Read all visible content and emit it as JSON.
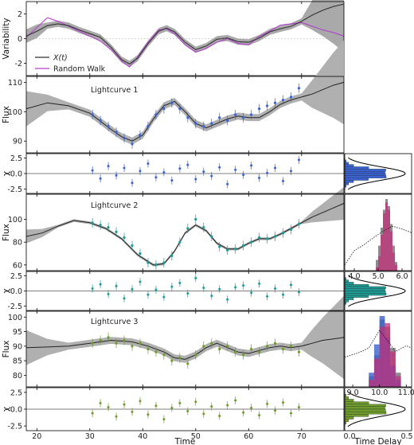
{
  "chart_data": [
    {
      "type": "line",
      "panel": "variability",
      "ylabel": "Variability",
      "xlabel": "Time",
      "xlim": [
        18,
        78
      ],
      "ylim": [
        -3,
        3
      ],
      "yticks": [
        "-2",
        "0",
        "2"
      ],
      "legend": {
        "position": "bottom-left",
        "entries": [
          "X(t)",
          "Random Walk"
        ]
      },
      "colors": {
        "model": "#333333",
        "band": "#a9a9a9",
        "random_walk": "#b53fd0"
      },
      "series": [
        {
          "name": "X(t)",
          "x": [
            18,
            20,
            22,
            24,
            26,
            28,
            30,
            32,
            34,
            36,
            37.5,
            39,
            41,
            43,
            44.5,
            46,
            48,
            50,
            52,
            54,
            56,
            58,
            60,
            62,
            64,
            66,
            68,
            70,
            72,
            74,
            76,
            78
          ],
          "values": [
            0.2,
            0.6,
            1.05,
            1.2,
            1.05,
            0.7,
            0.4,
            0.1,
            -0.7,
            -1.7,
            -2.05,
            -1.6,
            -0.4,
            0.6,
            0.85,
            0.55,
            -0.3,
            -0.9,
            -0.6,
            -0.05,
            0.05,
            -0.25,
            -0.3,
            0.05,
            0.55,
            0.8,
            1.0,
            1.4,
            1.9,
            2.3,
            2.6,
            2.8
          ]
        },
        {
          "name": "Random Walk",
          "x": [
            18,
            20,
            22,
            24,
            26,
            28,
            30,
            32,
            34,
            36,
            37.5,
            39,
            41,
            43,
            44.5,
            46,
            48,
            50,
            52,
            54,
            56,
            58,
            60,
            62,
            64,
            66,
            68,
            70,
            72,
            74,
            76,
            78
          ],
          "values": [
            0.1,
            0.9,
            1.7,
            1.4,
            1.0,
            0.6,
            0.2,
            -0.2,
            -0.9,
            -1.8,
            -2.3,
            -1.5,
            -0.3,
            0.7,
            0.8,
            0.4,
            -0.5,
            -1.1,
            -0.8,
            -0.3,
            0.0,
            -0.4,
            -0.5,
            0.2,
            0.6,
            1.1,
            1.2,
            1.3,
            1.0,
            0.7,
            0.5,
            0.2
          ]
        }
      ]
    },
    {
      "type": "scatter",
      "panel": "lightcurve1",
      "title": "Lightcurve 1",
      "ylabel": "Flux",
      "ylim": [
        86,
        112
      ],
      "yticks": [
        "90",
        "100",
        "110"
      ],
      "color": "#3a62d0",
      "model_x": [
        18,
        22,
        26,
        30,
        34,
        36,
        38,
        40,
        42,
        44,
        46,
        48,
        50,
        52,
        54,
        56,
        58,
        60,
        62,
        64,
        66,
        68,
        70,
        72,
        74,
        76,
        78
      ],
      "model_y": [
        101,
        103,
        102,
        99.5,
        94,
        91.5,
        90,
        92,
        97.5,
        102,
        103.5,
        100,
        96,
        94.5,
        96,
        97.5,
        98.5,
        98,
        98,
        100,
        102.5,
        104,
        105,
        106,
        107.5,
        109,
        110
      ],
      "points_x": [
        30.5,
        32,
        33.5,
        35,
        36.5,
        38,
        39.5,
        41,
        42.5,
        44,
        45.5,
        47,
        48.5,
        50,
        51.5,
        53,
        54.5,
        56,
        57.5,
        59,
        60.5,
        62,
        63.5,
        65,
        66.5,
        68,
        69.5
      ],
      "points_y": [
        99,
        97,
        95,
        93,
        91,
        89,
        92,
        95,
        99,
        101,
        103,
        101,
        98,
        96,
        95,
        96,
        98,
        97,
        99,
        98,
        99,
        101,
        102,
        103,
        104,
        105,
        108
      ]
    },
    {
      "type": "scatter",
      "panel": "residuals1",
      "ylabel": "χ",
      "ylim": [
        -3.2,
        3.2
      ],
      "yticks": [
        "-2.5",
        "0.0",
        "2.5"
      ],
      "color": "#3a62d0",
      "x": [
        30.5,
        32,
        33.5,
        35,
        36.5,
        38,
        39.5,
        41,
        42.5,
        44,
        45.5,
        47,
        48.5,
        50,
        51.5,
        53,
        54.5,
        56,
        57.5,
        59,
        60.5,
        62,
        63.5,
        65,
        66.5,
        68,
        69.5
      ],
      "values": [
        0.5,
        -0.8,
        1.2,
        -0.3,
        0.9,
        -1.5,
        0.4,
        1.6,
        -0.6,
        0.2,
        -1.1,
        0.8,
        1.4,
        -0.9,
        0.3,
        -0.4,
        1.0,
        -1.7,
        0.6,
        -0.2,
        1.3,
        -0.7,
        0.1,
        0.9,
        -1.2,
        0.4,
        2.2
      ]
    },
    {
      "type": "scatter",
      "panel": "lightcurve2",
      "title": "Lightcurve 2",
      "ylabel": "Flux",
      "ylim": [
        55,
        122
      ],
      "yticks": [
        "60",
        "80",
        "100"
      ],
      "color": "#1f9a94",
      "model_x": [
        18,
        21,
        24,
        27,
        30,
        33,
        36,
        39,
        42,
        44,
        46,
        48,
        50,
        52,
        54,
        56,
        58,
        60,
        62,
        64,
        66,
        68,
        70,
        72,
        74,
        76,
        78
      ],
      "model_y": [
        85,
        88,
        94,
        99,
        97,
        92,
        83,
        69,
        60,
        61,
        72,
        88,
        95,
        90,
        79,
        74,
        74,
        79,
        83,
        83,
        87,
        92,
        97,
        102,
        106,
        110,
        114
      ],
      "points_x": [
        30.5,
        32,
        33.5,
        35,
        36.5,
        38,
        39.5,
        41,
        42.5,
        44,
        45.5,
        47,
        48.5,
        50,
        51.5,
        53,
        54.5,
        56,
        57.5,
        59,
        60.5,
        62,
        63.5,
        65,
        66.5,
        68,
        69.5
      ],
      "points_y": [
        97,
        95,
        93,
        89,
        84,
        77,
        70,
        62,
        60,
        62,
        68,
        80,
        92,
        100,
        93,
        85,
        76,
        73,
        74,
        77,
        80,
        84,
        83,
        85,
        88,
        91,
        96
      ]
    },
    {
      "type": "scatter",
      "panel": "residuals2",
      "ylabel": "χ",
      "ylim": [
        -3.2,
        3.2
      ],
      "yticks": [
        "-2.5",
        "0.0",
        "2.5"
      ],
      "color": "#1f9a94",
      "x": [
        30.5,
        32,
        33.5,
        35,
        36.5,
        38,
        39.5,
        41,
        42.5,
        44,
        45.5,
        47,
        48.5,
        50,
        51.5,
        53,
        54.5,
        56,
        57.5,
        59,
        60.5,
        62,
        63.5,
        65,
        66.5,
        68,
        69.5
      ],
      "values": [
        0.4,
        1.1,
        -0.5,
        0.8,
        -1.2,
        0.3,
        1.5,
        -0.6,
        0.2,
        -1.0,
        0.7,
        1.3,
        -0.4,
        2.1,
        0.5,
        -0.8,
        0.3,
        -1.4,
        0.6,
        0.9,
        -0.3,
        1.2,
        -0.9,
        0.4,
        -0.6,
        1.0,
        -0.2
      ]
    },
    {
      "type": "scatter",
      "panel": "lightcurve3",
      "title": "Lightcurve 3",
      "ylabel": "Flux",
      "ylim": [
        76,
        102
      ],
      "yticks": [
        "80",
        "85",
        "90",
        "95",
        "100"
      ],
      "color": "#6e9a2e",
      "model_x": [
        18,
        22,
        26,
        30,
        34,
        38,
        41,
        44,
        46,
        48,
        50,
        52,
        54,
        56,
        58,
        60,
        62,
        64,
        66,
        68,
        70,
        72,
        74,
        76,
        78
      ],
      "model_y": [
        89.5,
        89.7,
        90,
        91,
        92,
        91.5,
        90,
        88,
        86,
        85.5,
        87,
        89.5,
        91,
        89.5,
        88,
        87.5,
        88.5,
        89.5,
        90,
        89.5,
        90,
        91,
        92,
        92.5,
        93
      ],
      "points_x": [
        30.5,
        32,
        33.5,
        35,
        36.5,
        38,
        39.5,
        41,
        42.5,
        44,
        45.5,
        47,
        48.5,
        50,
        51.5,
        53,
        54.5,
        56,
        57.5,
        59,
        60.5,
        62,
        63.5,
        65,
        66.5,
        68,
        69.5
      ],
      "points_y": [
        91,
        92,
        93,
        91,
        92,
        90,
        91,
        89,
        88,
        87,
        85,
        86,
        84,
        87,
        90,
        91,
        89,
        90,
        88,
        87,
        89,
        88,
        90,
        91,
        89,
        90,
        88
      ]
    },
    {
      "type": "scatter",
      "panel": "residuals3",
      "ylabel": "χ",
      "ylim": [
        -3.2,
        3.2
      ],
      "yticks": [
        "-2.5",
        "0.0",
        "2.5"
      ],
      "color": "#6e9a2e",
      "x": [
        30.5,
        32,
        33.5,
        35,
        36.5,
        38,
        39.5,
        41,
        42.5,
        44,
        45.5,
        47,
        48.5,
        50,
        51.5,
        53,
        54.5,
        56,
        57.5,
        59,
        60.5,
        62,
        63.5,
        65,
        66.5,
        68,
        69.5
      ],
      "values": [
        -0.6,
        0.9,
        0.3,
        -1.1,
        0.7,
        -0.4,
        1.2,
        -0.8,
        0.5,
        -1.5,
        0.2,
        0.9,
        -0.3,
        1.1,
        -0.7,
        0.4,
        -1.0,
        0.6,
        1.3,
        -0.5,
        0.2,
        -0.9,
        0.8,
        -0.2,
        1.0,
        -0.6,
        0.3
      ]
    },
    {
      "type": "histogram",
      "panel": "timedelay-lc2",
      "xlabel": "Time Delay",
      "xlim": [
        3.6,
        6.4
      ],
      "xticks": [
        "4.0",
        "5.0",
        "6.0"
      ],
      "bin_edges": [
        4.9,
        5.0,
        5.1,
        5.2,
        5.3,
        5.4,
        5.5,
        5.6,
        5.7,
        5.8
      ],
      "counts_gray": [
        0.15,
        0.35,
        0.6,
        0.85,
        1.0,
        0.9,
        0.65,
        0.35,
        0.12
      ],
      "counts_magenta": [
        0.05,
        0.2,
        0.5,
        0.8,
        0.95,
        0.85,
        0.55,
        0.25,
        0.08
      ],
      "prior_x": [
        3.6,
        4.0,
        4.4,
        4.8,
        5.2,
        5.6,
        6.0,
        6.4
      ],
      "prior_y": [
        0.08,
        0.28,
        0.36,
        0.46,
        0.55,
        0.62,
        0.58,
        0.53
      ]
    },
    {
      "type": "histogram",
      "panel": "timedelay-lc3",
      "xlim": [
        8.7,
        11.2
      ],
      "xticks": [
        "9.0",
        "10.0",
        "11.0"
      ],
      "bin_edges": [
        9.6,
        9.8,
        10.0,
        10.2,
        10.4,
        10.6,
        10.8
      ],
      "counts_gray": [
        0.15,
        0.45,
        0.95,
        0.85,
        0.55,
        0.2
      ],
      "counts_blue": [
        0.2,
        0.6,
        1.0,
        0.7,
        0.3,
        0.1
      ],
      "counts_magenta": [
        0.1,
        0.4,
        0.85,
        0.9,
        0.5,
        0.15
      ],
      "prior_x": [
        8.7,
        9.2,
        9.6,
        10.0,
        10.3,
        10.6,
        11.0,
        11.2
      ],
      "prior_y": [
        0.42,
        0.48,
        0.55,
        0.8,
        0.65,
        0.5,
        0.58,
        0.55
      ]
    },
    {
      "type": "histogram",
      "panel": "chi-histograms",
      "xlim": [
        0.0,
        0.5
      ],
      "xticks": [
        "0.0",
        "0.5"
      ],
      "orientation": "horizontal",
      "gaussian_peak": 0.4
    }
  ]
}
